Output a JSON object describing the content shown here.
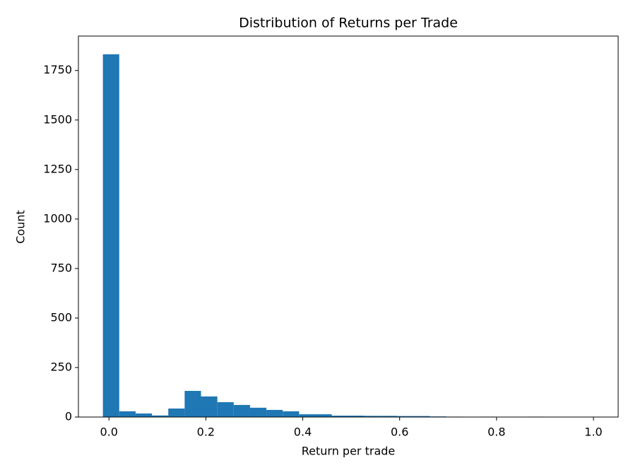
{
  "chart_data": {
    "type": "histogram",
    "title": "Distribution of Returns per Trade",
    "x_label": "Return per trade",
    "y_label": "Count",
    "bins": [
      -0.0125,
      0.02125,
      0.055,
      0.08875,
      0.1225,
      0.15625,
      0.19,
      0.22375,
      0.2575,
      0.29125,
      0.325,
      0.35875,
      0.3925,
      0.42625,
      0.46,
      0.49375,
      0.5275,
      0.56125,
      0.595,
      0.62875,
      0.6625,
      0.69625,
      0.73,
      0.76375,
      0.7975,
      0.83125,
      0.865,
      0.89875,
      0.9325,
      0.96625,
      1.0
    ],
    "values": [
      1832,
      29,
      18,
      8,
      43,
      132,
      104,
      75,
      61,
      47,
      36,
      29,
      14,
      14,
      7,
      7,
      6,
      6,
      5,
      5,
      3,
      2,
      1,
      2,
      1,
      1,
      2,
      1,
      1,
      1
    ],
    "color": "#1f77b4",
    "xlim": [
      -0.063,
      1.051
    ],
    "ylim": [
      0,
      1924
    ],
    "xticks": [
      {
        "value": 0,
        "label": "0.0"
      },
      0.2,
      0.4,
      0.6,
      0.8,
      {
        "value": 1,
        "label": "1.0"
      }
    ],
    "yticks": [
      0,
      250,
      500,
      750,
      1000,
      1250,
      1500,
      1750
    ],
    "grid": false
  }
}
